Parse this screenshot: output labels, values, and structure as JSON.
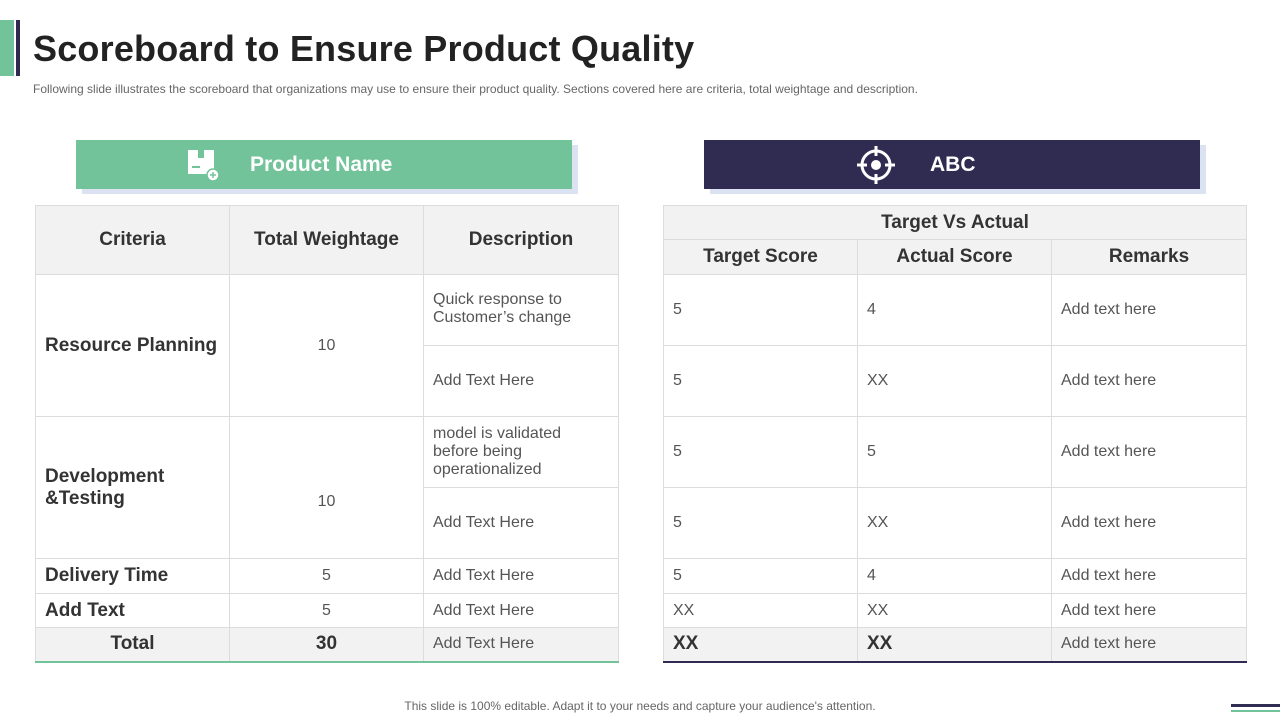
{
  "title": "Scoreboard to Ensure Product Quality",
  "subtitle": "Following slide illustrates the scoreboard that organizations may use to ensure their product quality. Sections covered  here are criteria, total weightage and description.",
  "left_banner": {
    "label": "Product Name",
    "icon": "package-icon"
  },
  "right_banner": {
    "label": "ABC",
    "icon": "target-icon"
  },
  "left_table": {
    "headers": [
      "Criteria",
      "Total Weightage",
      "Description"
    ],
    "rows": [
      {
        "criteria": "Resource Planning",
        "weightage": "10",
        "descriptions": [
          "Quick response to Customer’s change",
          "Add Text Here"
        ]
      },
      {
        "criteria": "Development &Testing",
        "weightage": "10",
        "descriptions": [
          "model is validated before being operationalized",
          "Add Text Here"
        ]
      },
      {
        "criteria": "Delivery Time",
        "weightage": "5",
        "descriptions": [
          "Add Text Here"
        ]
      },
      {
        "criteria": "Add Text",
        "weightage": "5",
        "descriptions": [
          "Add Text Here"
        ]
      }
    ],
    "total": {
      "label": "Total",
      "weightage": "30",
      "description": "Add Text Here"
    }
  },
  "right_table": {
    "group_header": "Target Vs Actual",
    "headers": [
      "Target Score",
      "Actual Score",
      "Remarks"
    ],
    "rows": [
      [
        "5",
        "4",
        "Add text here"
      ],
      [
        "5",
        "XX",
        "Add text here"
      ],
      [
        "5",
        "5",
        "Add text here"
      ],
      [
        "5",
        "XX",
        "Add text here"
      ],
      [
        "5",
        "4",
        "Add text here"
      ],
      [
        "XX",
        "XX",
        "Add text here"
      ]
    ],
    "total": [
      "XX",
      "XX",
      "Add text here"
    ]
  },
  "footer": "This slide is 100% editable. Adapt it to your needs and capture your audience's attention.",
  "colors": {
    "green": "#72c39a",
    "navy": "#302b50",
    "shadow": "#dbe2f1",
    "header_bg": "#f2f2f2"
  }
}
